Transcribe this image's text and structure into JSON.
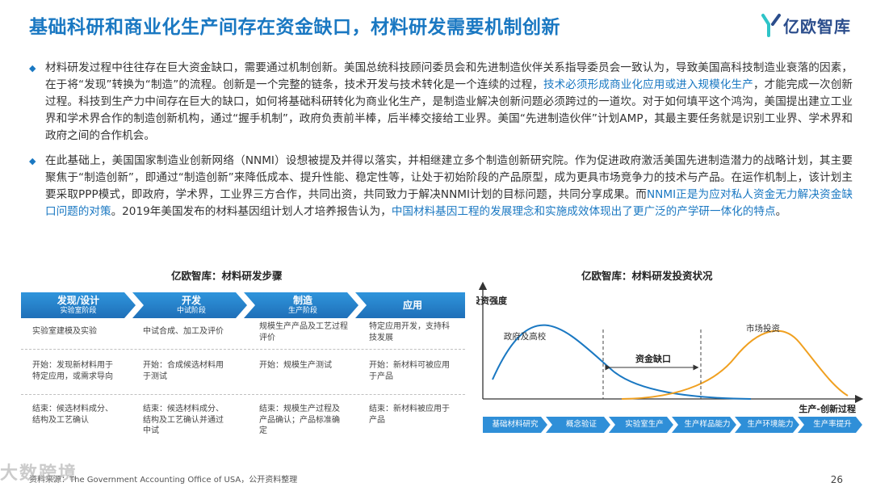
{
  "header": {
    "title": "基础科研和商业化生产间存在资金缺口，材料研发需要机制创新",
    "logo_text": "亿欧智库"
  },
  "paragraphs": [
    {
      "parts": [
        "材料研发过程中往往存在巨大资金缺口，需要通过机制创新。美国总统科技顾问委员会和先进制造伙伴关系指导委员会一致认为，导致美国高科技制造业衰落的因素，在于将“发现”转换为“制造”的流程。创新是一个完整的链条，技术开发与技术转化是一个连续的过程，",
        "技术必须形成商业化应用或进入规模化生产",
        "，才能完成一次创新过程。科技到生产力中间存在巨大的缺口，如何将基础科研转化为商业化生产，是制造业解决创新问题必须跨过的一道坎。对于如何填平这个鸿沟，美国提出建立工业界和学术界合作的制造创新机构，通过“握手机制”，政府负责前半棒，后半棒交接给工业界。美国“先进制造伙伴”计划AMP，其最主要任务就是识别工业界、学术界和政府之间的合作机会。"
      ]
    },
    {
      "parts": [
        "在此基础上，美国国家制造业创新网络（NNMI）设想被提及并得以落实，并相继建立多个制造创新研究院。作为促进政府激活美国先进制造潜力的战略计划，其主要聚焦于“制造创新”，即通过“制造创新”来降低成本、提升性能、稳定性等，让处于初始阶段的产品原型，成为更具市场竞争力的技术与产品。在运作机制上，该计划主要采取PPP模式，即政府，学术界，工业界三方合作，共同出资，共同致力于解决NNMI计划的目标问题，共同分享成果。而",
        "NNMI正是为应对私人资金无力解决资金缺口问题的对策",
        "。2019年美国发布的材料基因组计划人才培养报告认为，",
        "中国材料基因工程的发展理念和实施成效体现出了更广泛的产学研一体化的特点",
        "。"
      ]
    }
  ],
  "left_panel": {
    "title": "亿欧智库：材料研发步骤",
    "stages": [
      {
        "name": "发现/设计",
        "sub": "实验室阶段"
      },
      {
        "name": "开发",
        "sub": "中试阶段"
      },
      {
        "name": "制造",
        "sub": "生产阶段"
      },
      {
        "name": "应用",
        "sub": ""
      }
    ],
    "rows": [
      [
        "实验室建模及实验",
        "中试合成、加工及评价",
        "规模生产产品及工艺过程评价",
        "特定应用开发，支持科技发展"
      ],
      [
        "开始：发现新材料用于特定应用，或需求导向",
        "开始：合成候选材料用于测试",
        "开始：规模生产测试",
        "开始：新材料可被应用于产品"
      ],
      [
        "结束：候选材料成分、结构及工艺确认",
        "结束：候选材料成分、结构及工艺确认并通过中试",
        "结束：规模生产过程及产品确认；产品标准确定",
        "结束：新材料被应用于产品"
      ]
    ]
  },
  "right_panel": {
    "title": "亿欧智库：材料研发投资状况",
    "y_label": "投资强度",
    "x_label": "生产-创新过程",
    "curve_government": "政府及高校",
    "curve_market": "市场投资",
    "gap_label": "资金缺口",
    "flow_steps": [
      "基础材料研究",
      "概念验证",
      "实验室生产",
      "生产样品能力",
      "生产环境能力",
      "生产率提升"
    ],
    "colors": {
      "government": "#1a78c2",
      "market": "#f0a020",
      "flow": "#2f8fd8"
    }
  },
  "footer": {
    "source": "资料来源：The Government Accounting Office of USA，公开资料整理",
    "watermark": "大数跨境",
    "page": "26"
  }
}
